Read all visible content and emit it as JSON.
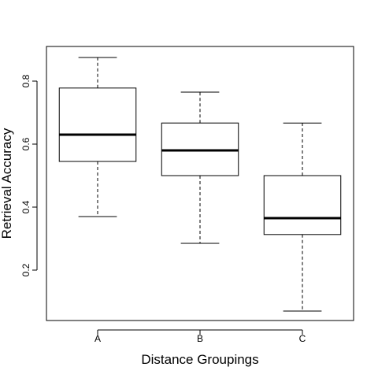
{
  "chart_data": {
    "type": "boxplot",
    "title": "",
    "xlabel": "Distance Groupings",
    "ylabel": "Retrieval Accuracy",
    "ylim": [
      0.04,
      0.91
    ],
    "yticks": [
      "0.2",
      "0.4",
      "0.6",
      "0.8"
    ],
    "categories": [
      "A",
      "B",
      "C"
    ],
    "boxes": [
      {
        "min": 0.37,
        "q1": 0.545,
        "median": 0.63,
        "q3": 0.778,
        "max": 0.875
      },
      {
        "min": 0.285,
        "q1": 0.5,
        "median": 0.58,
        "q3": 0.667,
        "max": 0.765
      },
      {
        "min": 0.07,
        "q1": 0.313,
        "median": 0.365,
        "q3": 0.5,
        "max": 0.667
      }
    ],
    "grid": false,
    "legend": "none"
  }
}
